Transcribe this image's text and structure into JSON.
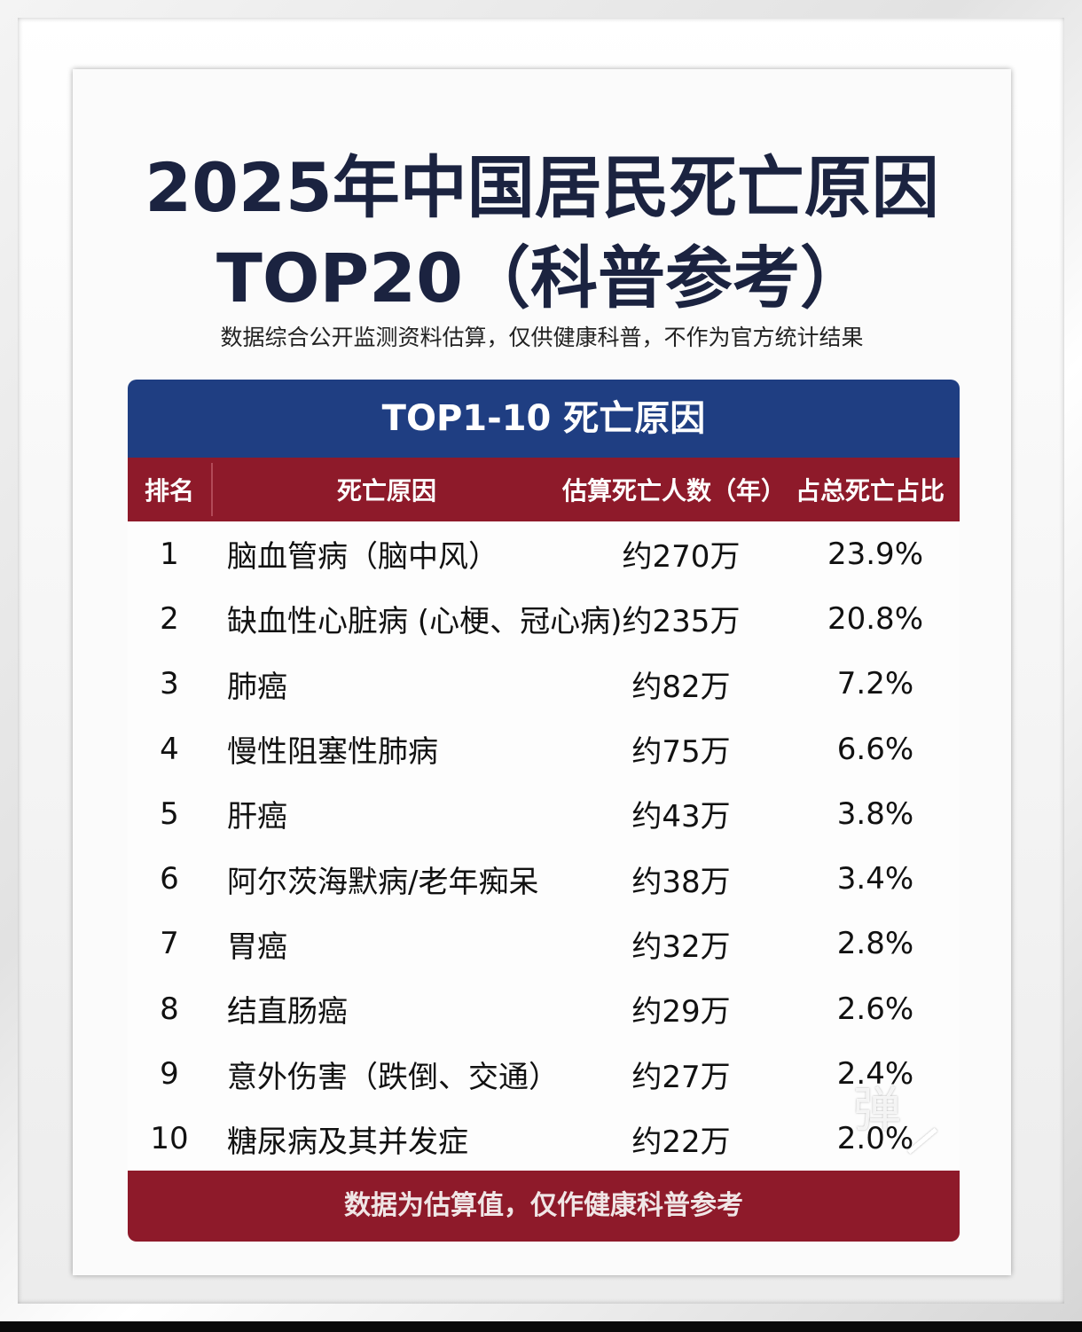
{
  "title_line1": "2025年中国居民死亡原因",
  "title_line2": "TOP20（科普参考）",
  "subtitle": "数据综合公开监测资料估算，仅供健康科普，不作为官方统计结果",
  "table": {
    "heading": "TOP1-10 死亡原因",
    "columns": {
      "rank": "排名",
      "cause": "死亡原因",
      "deaths": "估算死亡人数（年）",
      "share": "占总死亡占比"
    },
    "rows": [
      {
        "rank": "1",
        "cause": "脑血管病（脑中风）",
        "deaths": "约270万",
        "share": "23.9%"
      },
      {
        "rank": "2",
        "cause": "缺血性心脏病 (心梗、冠心病)",
        "deaths": "约235万",
        "share": "20.8%"
      },
      {
        "rank": "3",
        "cause": "肺癌",
        "deaths": "约82万",
        "share": "7.2%"
      },
      {
        "rank": "4",
        "cause": "慢性阻塞性肺病",
        "deaths": "约75万",
        "share": "6.6%"
      },
      {
        "rank": "5",
        "cause": "肝癌",
        "deaths": "约43万",
        "share": "3.8%"
      },
      {
        "rank": "6",
        "cause": "阿尔茨海默病/老年痴呆",
        "deaths": "约38万",
        "share": "3.4%"
      },
      {
        "rank": "7",
        "cause": "胃癌",
        "deaths": "约32万",
        "share": "2.8%"
      },
      {
        "rank": "8",
        "cause": "结直肠癌",
        "deaths": "约29万",
        "share": "2.6%"
      },
      {
        "rank": "9",
        "cause": "意外伤害（跌倒、交通）",
        "deaths": "约27万",
        "share": "2.4%"
      },
      {
        "rank": "10",
        "cause": "糖尿病及其并发症",
        "deaths": "约22万",
        "share": "2.0%"
      }
    ],
    "footer": "数据为估算值，仅作健康科普参考"
  },
  "watermark": "弹",
  "colors": {
    "title": "#1b2340",
    "header_blue": "#1f3e82",
    "header_red": "#8e1a2a"
  }
}
